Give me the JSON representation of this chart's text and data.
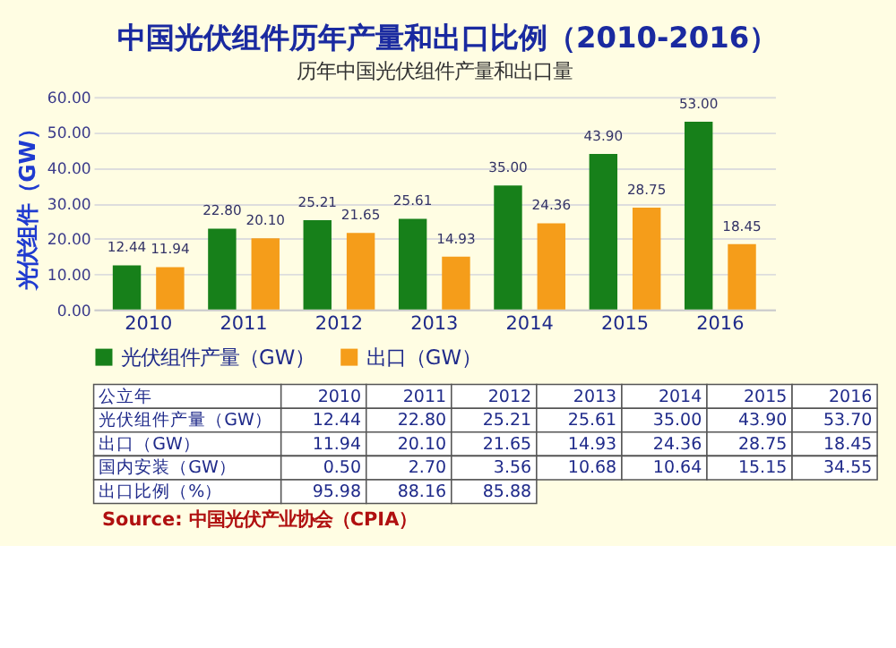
{
  "chart_data": {
    "type": "bar",
    "title": "中国光伏组件历年产量和出口比例（2010-2016）",
    "subtitle": "历年中国光伏组件产量和出口量",
    "ylabel": "光伏组件（GW）",
    "categories": [
      "2010",
      "2011",
      "2012",
      "2013",
      "2014",
      "2015",
      "2016"
    ],
    "series": [
      {
        "name": "光伏组件产量（GW）",
        "color": "#17801a",
        "values": [
          12.44,
          22.8,
          25.21,
          25.61,
          35.0,
          43.9,
          53.0
        ],
        "value_labels": [
          "12.44",
          "22.80",
          "25.21",
          "25.61",
          "35.00",
          "43.90",
          "53.00"
        ]
      },
      {
        "name": "出口（GW）",
        "color": "#f59d1a",
        "values": [
          11.94,
          20.1,
          21.65,
          14.93,
          24.36,
          28.75,
          18.45
        ],
        "value_labels": [
          "11.94",
          "20.10",
          "21.65",
          "14.93",
          "24.36",
          "28.75",
          "18.45"
        ]
      }
    ],
    "ylim": [
      0,
      60
    ],
    "yticks": [
      {
        "value": 0,
        "label": "0.00"
      },
      {
        "value": 10,
        "label": "10.00"
      },
      {
        "value": 20,
        "label": "20.00"
      },
      {
        "value": 30,
        "label": "30.00"
      },
      {
        "value": 40,
        "label": "40.00"
      },
      {
        "value": 50,
        "label": "50.00"
      },
      {
        "value": 60,
        "label": "60.00"
      }
    ],
    "grid": "y",
    "legend": "bottom",
    "annotations": [
      "公立年 2010 2011 2012 2013 2014 2015 2016",
      "光伏组件产量（GW） 12.44 22.80 25.21 25.61 35.00 43.90 53.70",
      "出口（GW） 11.94 20.10 21.65 14.93 24.36 28.75 18.45",
      "国内安装（GW） 0.50 2.70 3.56 10.68 10.64 15.15 34.55",
      "出口比例（%） 95.98 88.16 85.88",
      "Source: 中国光伏产业协会（CPIA）"
    ]
  }
}
